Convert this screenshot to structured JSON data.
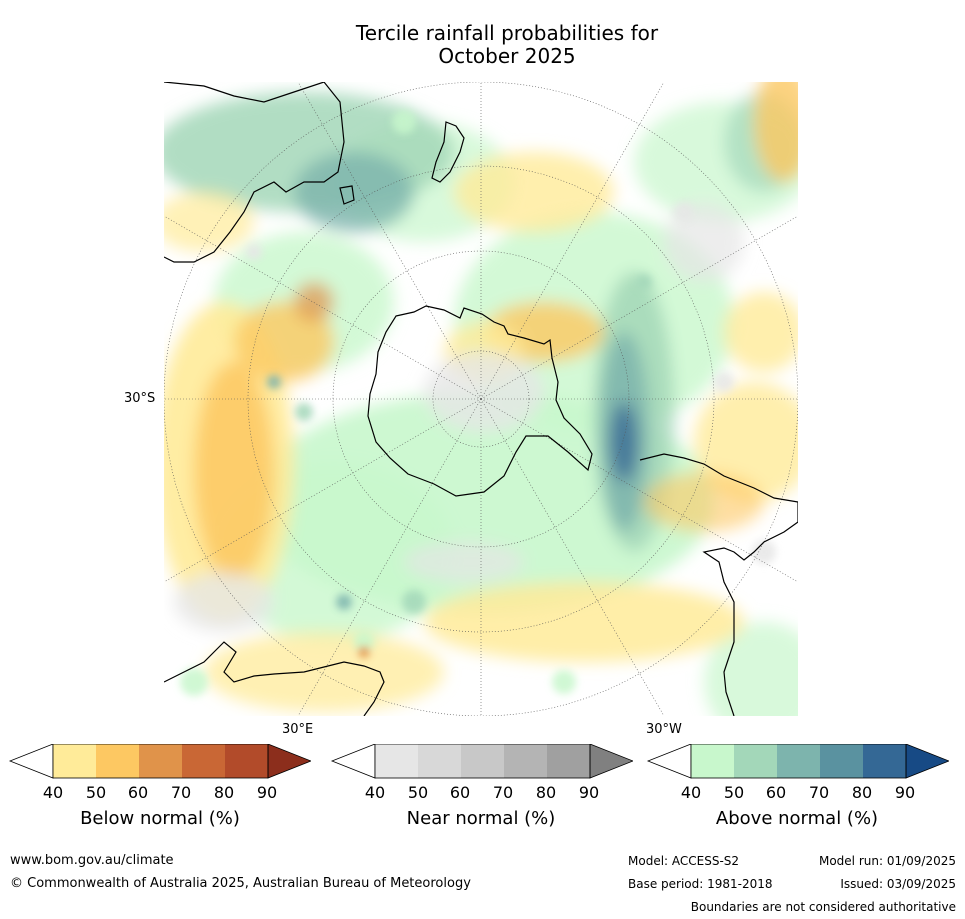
{
  "title_line1": "Tercile rainfall probabilities for",
  "title_line2": "October 2025",
  "map": {
    "labels": {
      "lat": "30°S",
      "lon_east": "30°E",
      "lon_west": "30°W"
    }
  },
  "legend": [
    {
      "label": "Below normal (%)",
      "ticks": [
        "40",
        "50",
        "60",
        "70",
        "80",
        "90"
      ],
      "colors": [
        "#ffffff",
        "#ffeb99",
        "#fdc862",
        "#e0934a",
        "#c96735",
        "#b24b2a",
        "#8c2e1c"
      ]
    },
    {
      "label": "Near normal (%)",
      "ticks": [
        "40",
        "50",
        "60",
        "70",
        "80",
        "90"
      ],
      "colors": [
        "#ffffff",
        "#e6e6e6",
        "#d8d8d8",
        "#c8c8c8",
        "#b4b4b4",
        "#a0a0a0",
        "#808080"
      ]
    },
    {
      "label": "Above normal (%)",
      "ticks": [
        "40",
        "50",
        "60",
        "70",
        "80",
        "90"
      ],
      "colors": [
        "#ffffff",
        "#c8f7cc",
        "#a3d7b9",
        "#7db4ad",
        "#5a92a0",
        "#346895",
        "#174a85"
      ]
    }
  ],
  "footer": {
    "website": "www.bom.gov.au/climate",
    "copyright": "© Commonwealth of Australia 2025, Australian Bureau of Meteorology",
    "model": "Model: ACCESS-S2",
    "base_period": "Base period: 1981-2018",
    "model_run": "Model run: 01/09/2025",
    "issued": "Issued: 03/09/2025",
    "disclaimer": "Boundaries are not considered authoritative"
  }
}
